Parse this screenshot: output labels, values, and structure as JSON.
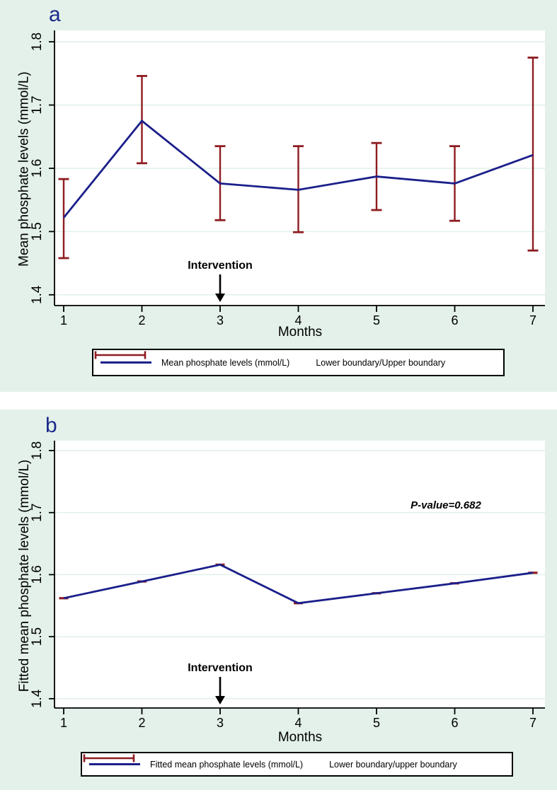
{
  "figure": {
    "type": "two-panel interrupted time-series line chart with error bars",
    "background_color": "#e3f1ea",
    "plot_background": "#ffffff",
    "grid_color": "#e2f1ea",
    "line_color": "#1b1f8a",
    "error_color": "#8e1c21",
    "axis_color": "#000000",
    "panel_label_color": "#1c2a8a"
  },
  "chart_data": [
    {
      "type": "line",
      "panel_label": "a",
      "x": [
        1,
        2,
        3,
        4,
        5,
        6,
        7
      ],
      "series": [
        {
          "name": "Mean phosphate levels (mmol/L)",
          "values": [
            1.522,
            1.675,
            1.576,
            1.566,
            1.587,
            1.576,
            1.621
          ]
        }
      ],
      "error_bars": {
        "name": "Lower boundary/Upper boundary",
        "lower": [
          1.458,
          1.608,
          1.518,
          1.499,
          1.534,
          1.517,
          1.47
        ],
        "upper": [
          1.583,
          1.746,
          1.635,
          1.635,
          1.64,
          1.635,
          1.775
        ]
      },
      "xlabel": "Months",
      "ylabel": "Mean phosphate levels (mmol/L)",
      "xticks": [
        1,
        2,
        3,
        4,
        5,
        6,
        7
      ],
      "yticks": [
        1.4,
        1.5,
        1.6,
        1.7,
        1.8
      ],
      "ylim": [
        1.383,
        1.818
      ],
      "grid": true,
      "annotation": {
        "text": "Intervention",
        "x": 3
      },
      "point_markers": "none",
      "legend_position": "bottom",
      "legend": [
        {
          "sample": "line",
          "label": "Mean phosphate levels (mmol/L)"
        },
        {
          "sample": "errorbar",
          "label": "Lower boundary/Upper boundary"
        }
      ]
    },
    {
      "type": "line",
      "panel_label": "b",
      "x": [
        1,
        2,
        3,
        4,
        5,
        6,
        7
      ],
      "series": [
        {
          "name": "Fitted mean phosphate levels (mmol/L)",
          "values": [
            1.562,
            1.589,
            1.616,
            1.554,
            1.57,
            1.586,
            1.603
          ]
        }
      ],
      "error_bars": {
        "name": "Lower boundary/upper boundary",
        "lower": [
          1.56,
          1.587,
          1.614,
          1.552,
          1.568,
          1.584,
          1.601
        ],
        "upper": [
          1.564,
          1.591,
          1.618,
          1.556,
          1.572,
          1.588,
          1.605
        ]
      },
      "xlabel": "Months",
      "ylabel": "Fitted mean phosphate levels (mmol/L)",
      "xticks": [
        1,
        2,
        3,
        4,
        5,
        6,
        7
      ],
      "yticks": [
        1.4,
        1.5,
        1.6,
        1.7,
        1.8
      ],
      "ylim": [
        1.385,
        1.816
      ],
      "grid": true,
      "annotation": {
        "text": "Intervention",
        "x": 3
      },
      "p_value_text": "P-value=0.682",
      "point_markers": "dash",
      "legend_position": "bottom",
      "legend": [
        {
          "sample": "line",
          "label": "Fitted mean phosphate levels (mmol/L)"
        },
        {
          "sample": "errorbar",
          "label": "Lower boundary/upper boundary"
        }
      ]
    }
  ]
}
